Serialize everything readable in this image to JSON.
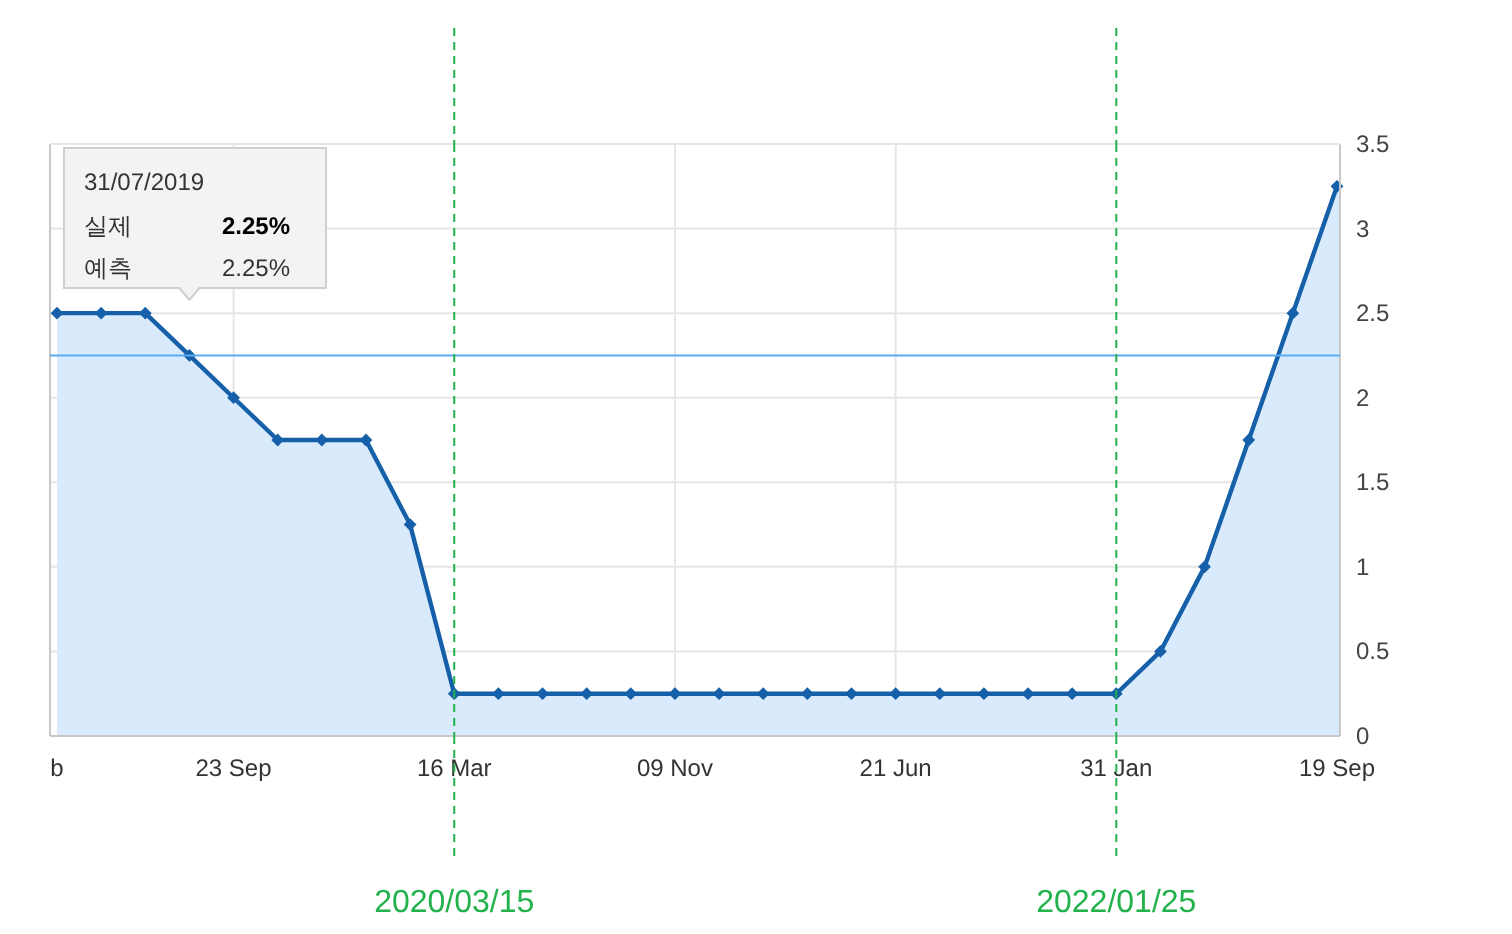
{
  "chart_data": {
    "type": "area",
    "categories": [
      "b",
      null,
      null,
      null,
      "23 Sep",
      null,
      null,
      null,
      null,
      "16 Mar",
      null,
      null,
      null,
      null,
      "09 Nov",
      null,
      null,
      null,
      null,
      "21 Jun",
      null,
      null,
      null,
      null,
      "31 Jan",
      null,
      null,
      null,
      null,
      "19 Sep"
    ],
    "values": [
      2.5,
      2.5,
      2.5,
      2.25,
      2.0,
      1.75,
      1.75,
      1.75,
      1.25,
      0.25,
      0.25,
      0.25,
      0.25,
      0.25,
      0.25,
      0.25,
      0.25,
      0.25,
      0.25,
      0.25,
      0.25,
      0.25,
      0.25,
      0.25,
      0.25,
      0.5,
      1.0,
      1.75,
      2.5,
      3.25
    ],
    "color": "#1560a8",
    "ylim": [
      0,
      3.5
    ],
    "yticks": [
      0,
      0.5,
      1,
      1.5,
      2,
      2.5,
      3,
      3.5
    ],
    "grid": true,
    "marker": "diamond",
    "ref_lines": [
      {
        "axis": "y",
        "value": 2.25,
        "color": "#5aabf5"
      },
      {
        "axis": "x",
        "value": "16 Mar",
        "label": "2020/03/15",
        "color": "#22b24c",
        "line_style": "dashed"
      },
      {
        "axis": "x",
        "value": "31 Jan",
        "label": "2022/01/25",
        "color": "#22b24c",
        "line_style": "dashed"
      }
    ],
    "annotations": [
      "31/07/2019",
      "실제",
      "2.25%",
      "예측",
      "2.25%"
    ]
  }
}
